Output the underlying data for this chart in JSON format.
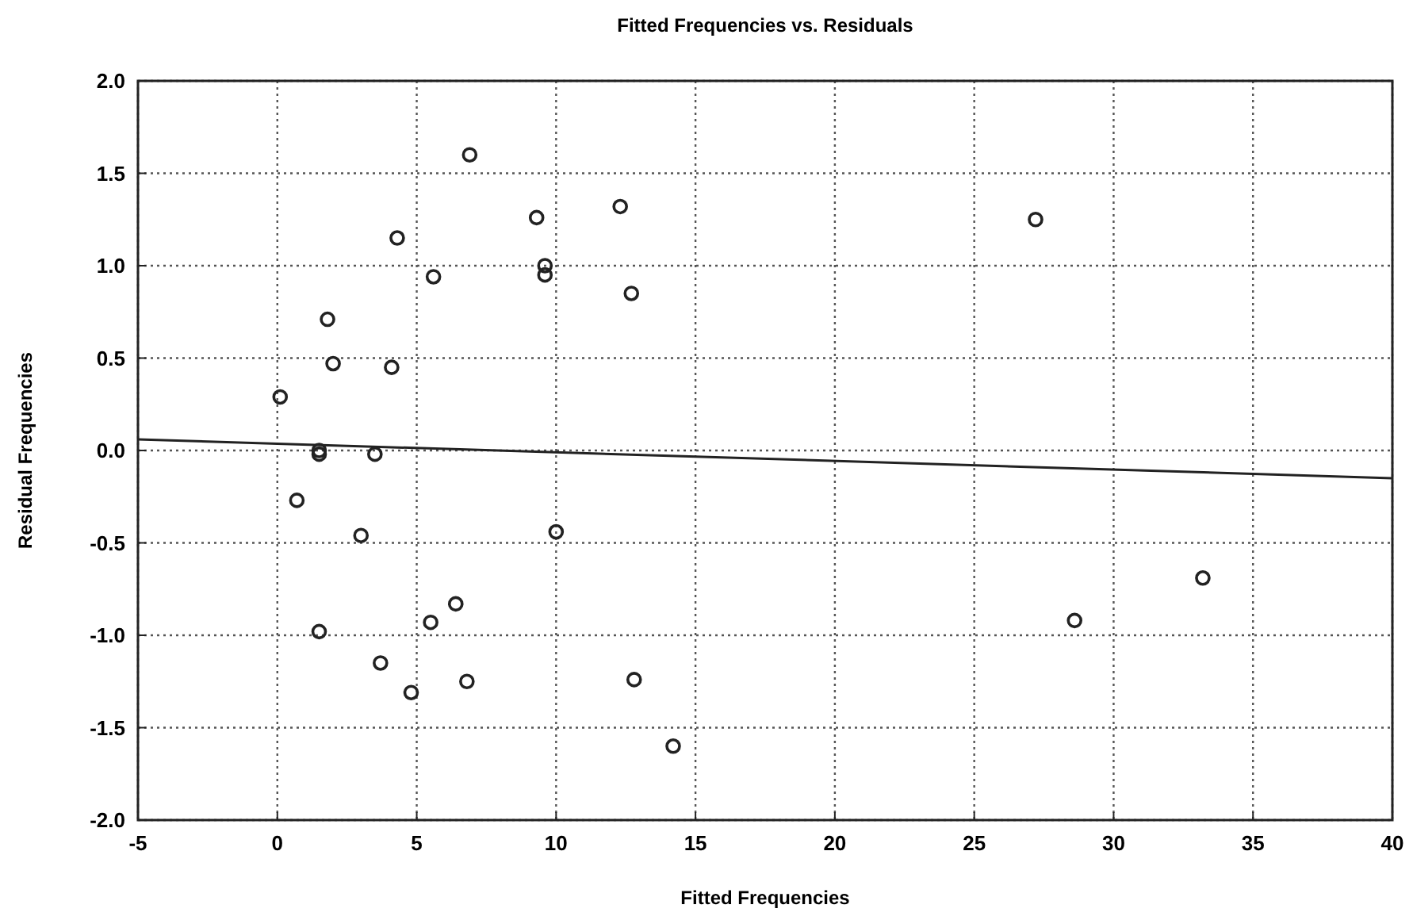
{
  "chart_data": {
    "type": "scatter",
    "title": "Fitted Frequencies vs. Residuals",
    "xlabel": "Fitted Frequencies",
    "ylabel": "Residual Frequencies",
    "xlim": [
      -5,
      40
    ],
    "xticks": [
      -5,
      0,
      5,
      10,
      15,
      20,
      25,
      30,
      35,
      40
    ],
    "ylim": [
      -2,
      2
    ],
    "yticks": [
      {
        "value": -2,
        "label": "-2.0"
      },
      {
        "value": -1.5,
        "label": "-1.5"
      },
      {
        "value": -1,
        "label": "-1.0"
      },
      {
        "value": -0.5,
        "label": "-0.5"
      },
      {
        "value": 0,
        "label": "0.0"
      },
      {
        "value": 0.5,
        "label": "0.5"
      },
      {
        "value": 1,
        "label": "1.0"
      },
      {
        "value": 1.5,
        "label": "1.5"
      },
      {
        "value": 2,
        "label": "2.0"
      }
    ],
    "grid": true,
    "marker": "circle",
    "series": [
      {
        "type": "scatter",
        "color": "#222222",
        "x": [
          6.9,
          9.3,
          9.6,
          9.6,
          4.3,
          5.6,
          1.8,
          2.0,
          4.1,
          0.1,
          1.5,
          1.5,
          3.5,
          0.7,
          3.0,
          10.0,
          6.4,
          5.5,
          1.5,
          3.7,
          6.8,
          4.8,
          12.3,
          12.7,
          27.2,
          33.2,
          28.6,
          12.8,
          14.2
        ],
        "values": [
          1.6,
          1.26,
          1.0,
          0.95,
          1.15,
          0.94,
          0.71,
          0.47,
          0.45,
          0.29,
          0.0,
          -0.02,
          -0.02,
          -0.27,
          -0.46,
          -0.44,
          -0.83,
          -0.93,
          -0.98,
          -1.15,
          -1.25,
          -1.31,
          1.32,
          0.85,
          1.25,
          -0.69,
          -0.92,
          -1.24,
          -1.6
        ]
      },
      {
        "type": "line",
        "color": "#222222",
        "line_style": "solid",
        "marker": "none",
        "x": [
          -5,
          40
        ],
        "values": [
          0.06,
          -0.15
        ]
      }
    ]
  }
}
